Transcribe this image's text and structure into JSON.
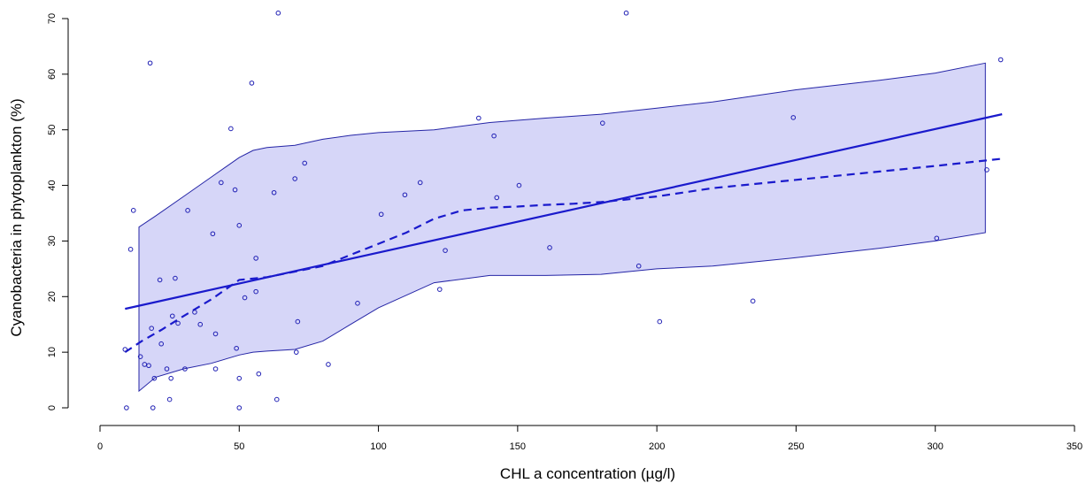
{
  "chart_data": {
    "type": "scatter",
    "title": "",
    "xlabel": "CHL a concentration (µg/l)",
    "ylabel": "Cyanobacteria in phytoplankton (%)",
    "xlim": [
      0,
      350
    ],
    "ylim": [
      0,
      70
    ],
    "x_ticks": [
      0,
      50,
      100,
      150,
      200,
      250,
      300,
      350
    ],
    "y_ticks": [
      0,
      10,
      20,
      30,
      40,
      50,
      60,
      70
    ],
    "grid": false,
    "legend": "none",
    "colors": {
      "points": "#1f1fb4",
      "lines": "#1a1acc",
      "band_fill": "#d6d6f8",
      "band_edge": "#2525a6"
    },
    "points": [
      [
        9,
        10.5
      ],
      [
        9.5,
        0
      ],
      [
        11,
        28.5
      ],
      [
        12,
        35.5
      ],
      [
        14.5,
        9.2
      ],
      [
        16,
        7.8
      ],
      [
        17.5,
        7.6
      ],
      [
        18,
        62
      ],
      [
        18.5,
        14.3
      ],
      [
        19,
        0
      ],
      [
        19.5,
        5.3
      ],
      [
        21.5,
        23
      ],
      [
        22,
        11.5
      ],
      [
        24,
        7
      ],
      [
        25,
        1.5
      ],
      [
        25.5,
        5.3
      ],
      [
        26,
        16.5
      ],
      [
        27,
        23.3
      ],
      [
        28,
        15.2
      ],
      [
        30.5,
        7
      ],
      [
        31.5,
        35.5
      ],
      [
        34,
        17.2
      ],
      [
        36,
        15
      ],
      [
        40.5,
        31.3
      ],
      [
        41.5,
        7
      ],
      [
        41.5,
        13.3
      ],
      [
        43.5,
        40.5
      ],
      [
        47,
        50.2
      ],
      [
        48.5,
        39.2
      ],
      [
        49,
        10.7
      ],
      [
        50,
        32.8
      ],
      [
        50,
        5.3
      ],
      [
        50,
        0
      ],
      [
        52,
        19.8
      ],
      [
        54.5,
        58.4
      ],
      [
        56,
        20.9
      ],
      [
        56,
        26.9
      ],
      [
        57,
        6.1
      ],
      [
        62.5,
        38.7
      ],
      [
        63.5,
        1.5
      ],
      [
        64,
        71
      ],
      [
        70,
        41.2
      ],
      [
        70.5,
        10
      ],
      [
        71,
        15.5
      ],
      [
        73.5,
        44
      ],
      [
        82,
        7.8
      ],
      [
        92.5,
        18.8
      ],
      [
        101,
        34.8
      ],
      [
        109.5,
        38.3
      ],
      [
        115,
        40.5
      ],
      [
        122,
        21.3
      ],
      [
        124,
        28.3
      ],
      [
        136,
        52.1
      ],
      [
        141.5,
        48.9
      ],
      [
        142.5,
        37.8
      ],
      [
        150.5,
        40
      ],
      [
        161.5,
        28.8
      ],
      [
        180.5,
        51.2
      ],
      [
        189,
        71
      ],
      [
        193.5,
        25.5
      ],
      [
        201,
        15.5
      ],
      [
        234.5,
        19.2
      ],
      [
        249,
        52.2
      ],
      [
        300.5,
        30.5
      ],
      [
        318.5,
        42.8
      ],
      [
        323.5,
        62.6
      ]
    ],
    "regression_line": {
      "x": [
        9,
        324
      ],
      "y": [
        17.8,
        52.8
      ]
    },
    "smooth_curve": {
      "x": [
        9,
        15,
        22,
        30,
        40,
        50,
        60,
        70,
        80,
        90,
        100,
        110,
        120,
        130,
        140,
        150,
        160,
        170,
        180,
        200,
        220,
        250,
        280,
        300,
        324
      ],
      "y": [
        10,
        12,
        14,
        16.5,
        19.5,
        23,
        23.5,
        24.5,
        25.5,
        27.5,
        29.5,
        31.5,
        34,
        35.5,
        36,
        36.2,
        36.5,
        36.7,
        37,
        38,
        39.5,
        41,
        42.5,
        43.5,
        44.8
      ]
    },
    "confidence_band": {
      "x": [
        14,
        20,
        30,
        40,
        50,
        55,
        60,
        70,
        80,
        90,
        100,
        120,
        140,
        160,
        180,
        200,
        220,
        250,
        280,
        300,
        318
      ],
      "upper": [
        32.5,
        34.5,
        38,
        41.5,
        45,
        46.3,
        46.8,
        47.2,
        48.3,
        49,
        49.5,
        50,
        51.3,
        52.1,
        52.8,
        53.9,
        55,
        57.2,
        58.9,
        60.2,
        62
      ],
      "lower": [
        3,
        5.5,
        7,
        8,
        9.5,
        10,
        10.2,
        10.5,
        12,
        15,
        18,
        22.5,
        23.8,
        23.8,
        24,
        25,
        25.5,
        27,
        28.7,
        30,
        31.5
      ]
    }
  }
}
